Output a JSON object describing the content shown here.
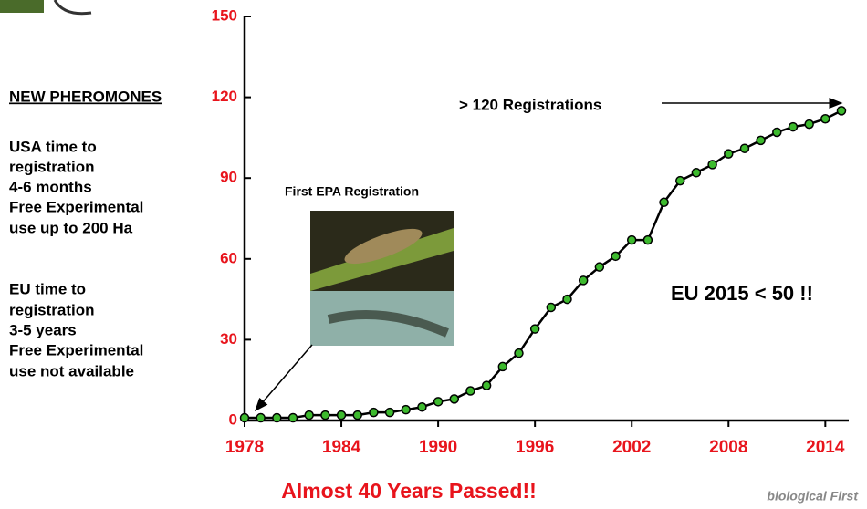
{
  "chart_data": {
    "type": "line",
    "x": [
      1978,
      1979,
      1980,
      1981,
      1982,
      1983,
      1984,
      1985,
      1986,
      1987,
      1988,
      1989,
      1990,
      1991,
      1992,
      1993,
      1994,
      1995,
      1996,
      1997,
      1998,
      1999,
      2000,
      2001,
      2002,
      2003,
      2004,
      2005,
      2006,
      2007,
      2008,
      2009,
      2010,
      2011,
      2012,
      2013,
      2014,
      2015
    ],
    "series": [
      {
        "name": null,
        "color": "#000000",
        "marker_color": "#3dba2e",
        "values": [
          1,
          1,
          1,
          1,
          2,
          2,
          2,
          2,
          3,
          3,
          4,
          5,
          7,
          8,
          11,
          13,
          20,
          25,
          34,
          42,
          45,
          52,
          57,
          61,
          67,
          67,
          81,
          89,
          92,
          95,
          99,
          101,
          104,
          107,
          109,
          110,
          112,
          115
        ]
      }
    ],
    "xlim": [
      1978,
      2015
    ],
    "xticks": [
      1978,
      1984,
      1990,
      1996,
      2002,
      2008,
      2014
    ],
    "ylim": [
      0,
      150
    ],
    "yticks": [
      0,
      30,
      60,
      90,
      120,
      150
    ],
    "annotations": [
      "First EPA Registration",
      "> 120 Registrations",
      "EU 2015 < 50 !!"
    ]
  },
  "sidebar": {
    "heading": "NEW PHEROMONES",
    "lines": [
      "USA time to",
      "registration",
      "4-6 months",
      "Free Experimental",
      "use up to 200 Ha",
      "EU time to",
      "registration",
      "3-5 years",
      "Free Experimental",
      "use not available"
    ]
  },
  "footer": "Almost 40 Years Passed!!",
  "logo": "biological First"
}
